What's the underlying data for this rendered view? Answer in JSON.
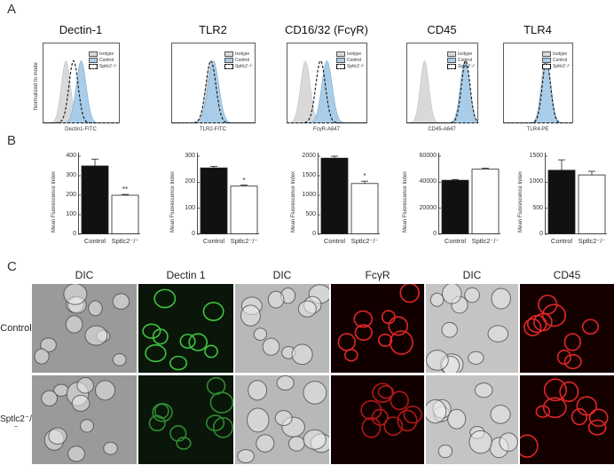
{
  "panels": {
    "a": "A",
    "b": "B",
    "c": "C"
  },
  "histograms": [
    {
      "title": "Dectin-1",
      "xlabel": "Dectin1-FITC",
      "ylabel": "Normalized to mode",
      "legend": [
        "Isotype",
        "Control",
        "Sptlc2⁻/⁻"
      ],
      "iso": 0.3,
      "ctrl": 0.5,
      "ko": 0.4
    },
    {
      "title": "TLR2",
      "xlabel": "TLR2-FITC",
      "ylabel": "",
      "legend": [
        "Isotype",
        "Control",
        "Sptlc2⁻/⁻"
      ],
      "iso": 0.47,
      "ctrl": 0.5,
      "ko": 0.47
    },
    {
      "title": "CD16/32 (FcγR)",
      "xlabel": "FcγR-A647",
      "ylabel": "",
      "legend": [
        "Isotype",
        "Control",
        "Sptlc2⁻/⁻"
      ],
      "iso": 0.23,
      "ctrl": 0.5,
      "ko": 0.42
    },
    {
      "title": "CD45",
      "xlabel": "CD45-A647",
      "ylabel": "",
      "legend": [
        "Isotype",
        "Control",
        "Sptlc2⁻/⁻"
      ],
      "iso": 0.25,
      "ctrl": 0.82,
      "ko": 0.83
    },
    {
      "title": "TLR4",
      "xlabel": "TLR4-PE",
      "ylabel": "",
      "legend": [
        "Isotype",
        "Control",
        "Sptlc2⁻/⁻"
      ],
      "iso": 0.6,
      "ctrl": 0.62,
      "ko": 0.62
    }
  ],
  "chart_data": [
    {
      "type": "bar",
      "ylabel": "Mean Fluorescence Index",
      "categories": [
        "Control",
        "Sptlc2⁻/⁻"
      ],
      "values": [
        350,
        200
      ],
      "errors": [
        35,
        4
      ],
      "ylim": [
        0,
        400
      ],
      "yticks": [
        0,
        100,
        200,
        300,
        400
      ],
      "sig": "**"
    },
    {
      "type": "bar",
      "ylabel": "Mean Fluorescence Index",
      "categories": [
        "Control",
        "Sptlc2⁻/⁻"
      ],
      "values": [
        255,
        185
      ],
      "errors": [
        6,
        4
      ],
      "ylim": [
        0,
        300
      ],
      "yticks": [
        0,
        100,
        200,
        300
      ],
      "sig": "*"
    },
    {
      "type": "bar",
      "ylabel": "Mean Fluorescence Index",
      "categories": [
        "Control",
        "Sptlc2⁻/⁻"
      ],
      "values": [
        1950,
        1300
      ],
      "errors": [
        50,
        60
      ],
      "ylim": [
        0,
        2000
      ],
      "yticks": [
        0,
        500,
        1000,
        1500,
        2000
      ],
      "sig": "*"
    },
    {
      "type": "bar",
      "ylabel": "Mean Fluorescence Index",
      "categories": [
        "Control",
        "Sptlc2⁻/⁻"
      ],
      "values": [
        41500,
        50000
      ],
      "errors": [
        600,
        700
      ],
      "ylim": [
        0,
        60000
      ],
      "yticks": [
        0,
        20000,
        40000,
        60000
      ],
      "sig": ""
    },
    {
      "type": "bar",
      "ylabel": "Mean Fluorescence Index",
      "categories": [
        "Control",
        "Sptlc2⁻/⁻"
      ],
      "values": [
        1230,
        1140
      ],
      "errors": [
        200,
        70
      ],
      "ylim": [
        0,
        1500
      ],
      "yticks": [
        0,
        500,
        1000,
        1500
      ],
      "sig": ""
    }
  ],
  "micrographs": {
    "columns": [
      "DIC",
      "Dectin 1",
      "DIC",
      "FcγR",
      "DIC",
      "CD45"
    ],
    "rows": [
      "Control",
      "Sptlc2⁻/⁻"
    ],
    "colors": [
      "#9a9a9a",
      "#0a160a",
      "#b8b8b8",
      "#120000",
      "#c4c4c4",
      "#150000"
    ]
  },
  "colors": {
    "isotype": "#d9d9d9",
    "control": "#a9cde8",
    "ko": "#111111",
    "ctrl_bar": "#111111",
    "ko_bar": "#ffffff"
  }
}
